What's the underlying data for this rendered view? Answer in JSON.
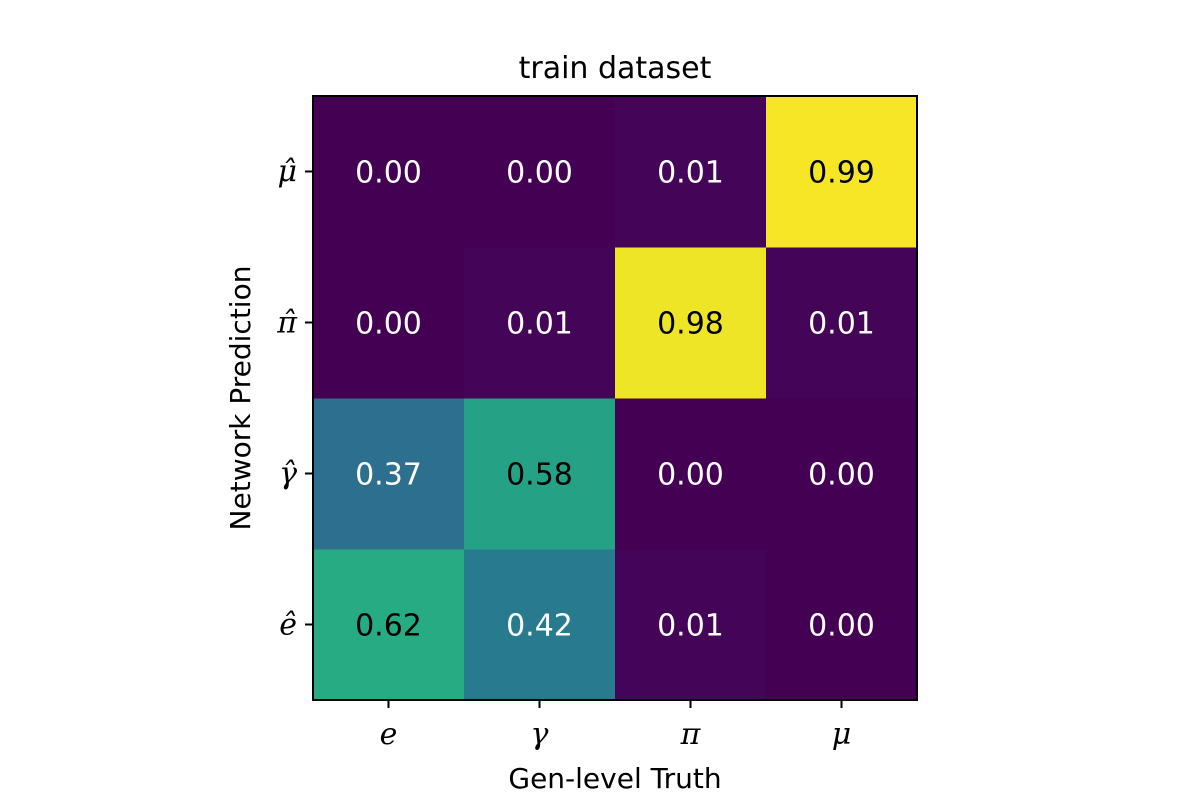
{
  "chart_data": {
    "type": "heatmap",
    "title": "train dataset",
    "xlabel": "Gen-level Truth",
    "ylabel": "Network Prediction",
    "x_categories": [
      "e",
      "γ",
      "π",
      "μ"
    ],
    "y_categories": [
      "ê",
      "γ̂",
      "π̂",
      "μ̂"
    ],
    "values": [
      [
        0.62,
        0.42,
        0.01,
        0.0
      ],
      [
        0.37,
        0.58,
        0.0,
        0.0
      ],
      [
        0.0,
        0.01,
        0.98,
        0.01
      ],
      [
        0.0,
        0.0,
        0.01,
        0.99
      ]
    ],
    "value_range": [
      0,
      1
    ],
    "colormap": "viridis",
    "value_format": "0.00",
    "grid": false,
    "colors": {
      "low": "#440154",
      "high": "#fde725",
      "text_light": "#ffffff",
      "text_dark": "#000000"
    }
  }
}
